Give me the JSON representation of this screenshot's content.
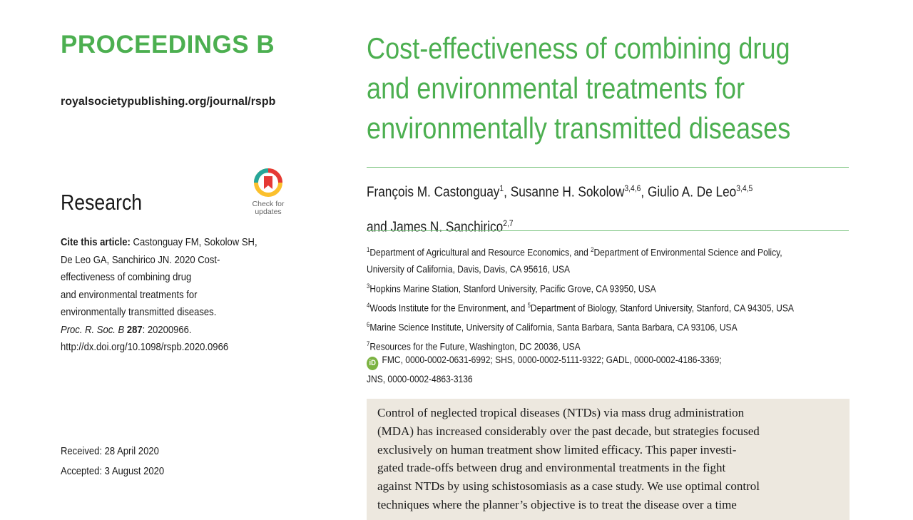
{
  "journal": {
    "name": "PROCEEDINGS B",
    "url": "royalsocietypublishing.org/journal/rspb"
  },
  "section": "Research",
  "check_updates": {
    "line1": "Check for",
    "line2": "updates",
    "colors": {
      "red": "#e53935",
      "yellow": "#fbc02d",
      "teal": "#26a69a"
    }
  },
  "cite": {
    "label": "Cite this article:",
    "lines": [
      "Castonguay FM, Sokolow SH,",
      "De Leo GA, Sanchirico JN. 2020 Cost-",
      "effectiveness of combining drug",
      "and environmental treatments for",
      "environmentally transmitted diseases."
    ],
    "journal_abbrev": "Proc. R. Soc. B",
    "volume": "287",
    "article_no": ": 20200966.",
    "doi": "http://dx.doi.org/10.1098/rspb.2020.0966"
  },
  "dates": {
    "received": "Received: 28 April 2020",
    "accepted": "Accepted: 3 August 2020"
  },
  "title_lines": [
    "Cost-effectiveness of combining drug",
    "and environmental treatments for",
    "environmentally transmitted diseases"
  ],
  "authors": [
    {
      "name": "François M. Castonguay",
      "sup": "1",
      "sep": ", "
    },
    {
      "name": "Susanne H. Sokolow",
      "sup": "3,4,6",
      "sep": ", "
    },
    {
      "name": "Giulio A. De Leo",
      "sup": "3,4,5",
      "sep": ""
    },
    {
      "name": "and James N. Sanchirico",
      "sup": "2,7",
      "sep": ""
    }
  ],
  "affiliations": [
    {
      "parts": [
        {
          "sup": "1",
          "text": "Department of Agricultural and Resource Economics, and "
        },
        {
          "sup": "2",
          "text": "Department of Environmental Science and Policy,"
        }
      ]
    },
    {
      "parts": [
        {
          "sup": "",
          "text": "University of California, Davis, Davis, CA 95616, USA"
        }
      ]
    },
    {
      "parts": [
        {
          "sup": "3",
          "text": "Hopkins Marine Station, Stanford University, Pacific Grove, CA 93950, USA"
        }
      ]
    },
    {
      "parts": [
        {
          "sup": "4",
          "text": "Woods Institute for the Environment, and "
        },
        {
          "sup": "5",
          "text": "Department of Biology, Stanford University, Stanford, CA 94305, USA"
        }
      ]
    },
    {
      "parts": [
        {
          "sup": "6",
          "text": "Marine Science Institute, University of California, Santa Barbara, Santa Barbara, CA 93106, USA"
        }
      ]
    },
    {
      "parts": [
        {
          "sup": "7",
          "text": "Resources for the Future, Washington, DC 20036, USA"
        }
      ]
    }
  ],
  "orcid": {
    "icon": "orcid-icon",
    "line1": "FMC, 0000-0002-0631-6992; SHS, 0000-0002-5111-9322; GADL, 0000-0002-4186-3369;",
    "line2": "JNS, 0000-0002-4863-3136"
  },
  "abstract_lines": [
    "Control of neglected tropical diseases (NTDs) via mass drug administration",
    "(MDA) has increased considerably over the past decade, but strategies focused",
    "exclusively on human treatment show limited efficacy. This paper investi-",
    "gated trade-offs between drug and environmental treatments in the fight",
    "against NTDs by using schistosomiasis as a case study. We use optimal control",
    "techniques where the planner’s objective is to treat the disease over a time"
  ]
}
